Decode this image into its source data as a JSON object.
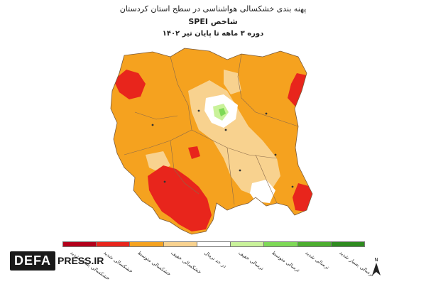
{
  "title": {
    "line1": "پهنه بندی خشکسالی هواشناسی در سطح استان کردستان",
    "line2": "شاخص SPEI",
    "line3": "دوره ۳ ماهه تا پایان تیر ۱۴۰۲"
  },
  "legend": [
    {
      "label": "خشکسالی بسیار شدید",
      "color": "#b3001b"
    },
    {
      "label": "خشکسالی شدید",
      "color": "#e8251c"
    },
    {
      "label": "خشکسالی متوسط",
      "color": "#f5a21f"
    },
    {
      "label": "خشکسالی خفیف",
      "color": "#f8d28f"
    },
    {
      "label": "در حد نرمال",
      "color": "#ffffff"
    },
    {
      "label": "ترسالی خفیف",
      "color": "#c9f29a"
    },
    {
      "label": "ترسالی متوسط",
      "color": "#7ed957"
    },
    {
      "label": "ترسالی شدید",
      "color": "#4cae2f"
    },
    {
      "label": "ترسالی بسیار شدید",
      "color": "#2e8b1f"
    }
  ],
  "north_label": "N",
  "watermark": {
    "boxed": "DEFA",
    "rest": "PRESS.IR"
  }
}
